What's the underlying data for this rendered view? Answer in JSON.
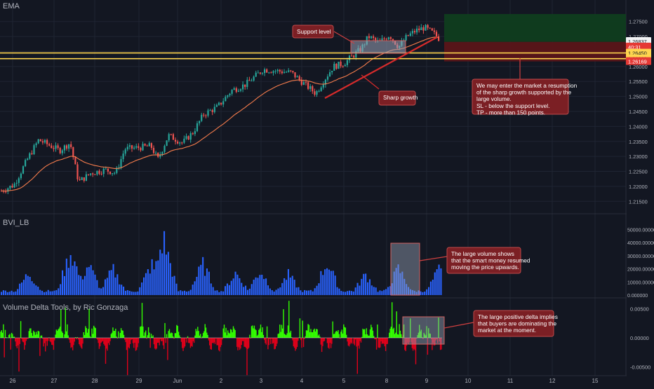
{
  "chart_data": [
    {
      "type": "candlestick",
      "title": "EMA",
      "series": [
        {
          "name": "EMA",
          "color": "#f57c4c"
        }
      ],
      "ylim": [
        1.2125,
        1.2775
      ],
      "yticks": [
        "1.27500",
        "1.27000",
        "1.26500",
        "1.26000",
        "1.25500",
        "1.25000",
        "1.24500",
        "1.24000",
        "1.23500",
        "1.23000",
        "1.22500",
        "1.22000",
        "1.21500"
      ],
      "price_labels": {
        "current": "1.26837",
        "timer": "40:31",
        "level_a": "1.26450",
        "level_b": "1.26260",
        "level_c": "1.26169"
      },
      "support_levels": [
        1.2645,
        1.2626
      ],
      "trade_zone": {
        "tp_top": 1.2775,
        "entry": 1.2682,
        "sl": 1.2617
      },
      "annotations": {
        "support": "Support level",
        "growth": "Sharp growth",
        "entry_lines": [
          "We may enter the market a resumption",
          "of the sharp growth supported by the",
          "large volume.",
          "SL - below the support level.",
          "TP - more than 150 points."
        ]
      }
    },
    {
      "type": "bar",
      "title": "BVI_LB",
      "ylim": [
        0,
        55000
      ],
      "yticks": [
        "50000.000000",
        "40000.000000",
        "30000.000000",
        "20000.000000",
        "10000.000000",
        "0.000000"
      ],
      "annotation_lines": [
        "The large volume shows",
        "that the smart money resumed",
        "moving the price upwards."
      ]
    },
    {
      "type": "area",
      "title": "Volume Delta Tools, by Ric Gonzaga",
      "ylim": [
        -0.006,
        0.006
      ],
      "yticks": [
        "0.00500",
        "0.00000",
        "-0.00500"
      ],
      "annotation_lines": [
        "The large positive delta implies",
        "that buyers are dominating the",
        "market at the moment."
      ]
    }
  ],
  "x_axis_labels": [
    "26",
    "27",
    "28",
    "29",
    "Jun",
    "2",
    "3",
    "4",
    "5",
    "8",
    "9",
    "10",
    "11",
    "12",
    "15"
  ],
  "colors": {
    "bull": "#26a69a",
    "bear": "#ef5350",
    "volume": "#2962ff",
    "support": "#ffd54f",
    "delta_pos": "#33ff00",
    "delta_neg": "#e0001a",
    "annotation_bg": "#7b1f24"
  }
}
